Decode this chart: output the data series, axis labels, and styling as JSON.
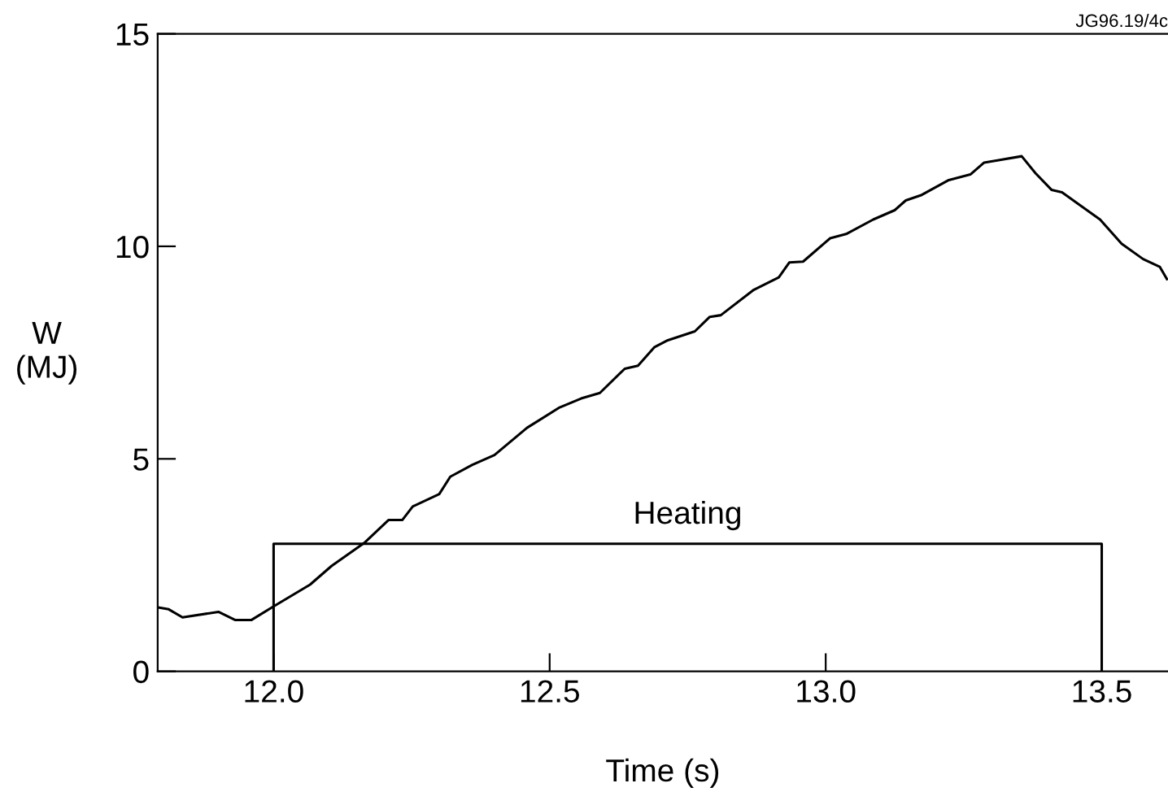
{
  "chart_data": {
    "type": "line",
    "xlabel": "Time (s)",
    "ylabel": "W\n(MJ)",
    "xlim": [
      11.79,
      13.62
    ],
    "ylim": [
      0,
      15
    ],
    "xticks": [
      {
        "value": 12.0,
        "label": "12.0"
      },
      12.5,
      {
        "value": 13.0,
        "label": "13.0"
      },
      13.5
    ],
    "yticks": [
      0,
      5,
      10,
      15
    ],
    "grid": false,
    "marker": "none",
    "line_style": "solid",
    "series": [
      {
        "color": "#000000",
        "x": [
          11.793,
          11.81,
          11.835,
          11.9,
          11.93,
          11.96,
          12.0,
          12.066,
          12.105,
          12.164,
          12.208,
          12.233,
          12.252,
          12.3,
          12.32,
          12.36,
          12.4,
          12.459,
          12.518,
          12.557,
          12.591,
          12.636,
          12.66,
          12.69,
          12.714,
          12.763,
          12.79,
          12.81,
          12.87,
          12.915,
          12.934,
          12.959,
          13.008,
          13.037,
          13.086,
          13.125,
          13.145,
          13.174,
          13.223,
          13.262,
          13.287,
          13.311,
          13.355,
          13.38,
          13.409,
          13.428,
          13.497,
          13.536,
          13.575,
          13.605,
          13.618
        ],
        "values": [
          1.5,
          1.46,
          1.27,
          1.4,
          1.21,
          1.21,
          1.53,
          2.04,
          2.48,
          3.02,
          3.56,
          3.56,
          3.88,
          4.17,
          4.58,
          4.86,
          5.09,
          5.73,
          6.21,
          6.42,
          6.55,
          7.12,
          7.19,
          7.63,
          7.79,
          8.0,
          8.34,
          8.38,
          8.98,
          9.27,
          9.62,
          9.64,
          10.19,
          10.29,
          10.63,
          10.85,
          11.08,
          11.21,
          11.56,
          11.69,
          11.97,
          12.02,
          12.12,
          11.72,
          11.33,
          11.27,
          10.63,
          10.06,
          9.7,
          9.52,
          9.23
        ]
      },
      {
        "color": "#000000",
        "x": [
          12.0,
          12.0,
          13.5,
          13.5
        ],
        "values": [
          0,
          3.0,
          3.0,
          0
        ]
      }
    ],
    "annotations": [
      "Heating",
      "JG96.19/4c"
    ]
  }
}
